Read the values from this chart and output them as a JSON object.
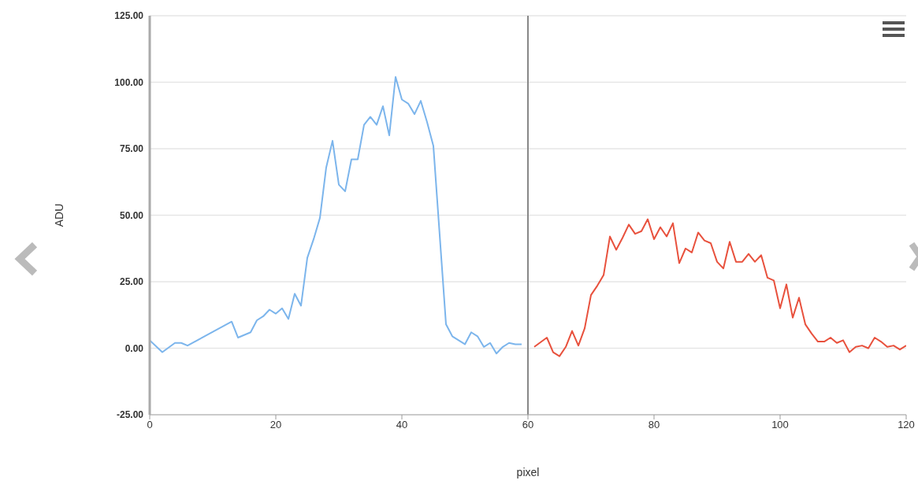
{
  "chart_data": {
    "type": "line",
    "xlabel": "pixel",
    "ylabel": "ADU",
    "xlim": [
      0,
      120
    ],
    "xticks": [
      0,
      20,
      40,
      60,
      80,
      100,
      120
    ],
    "ylim": [
      -25,
      125
    ],
    "yticks": [
      {
        "value": -25,
        "label": "-25.00"
      },
      {
        "value": 0,
        "label": "0.00"
      },
      {
        "value": 25,
        "label": "25.00"
      },
      {
        "value": 50,
        "label": "50.00"
      },
      {
        "value": 75,
        "label": "75.00"
      },
      {
        "value": 100,
        "label": "100.00"
      },
      {
        "value": 125,
        "label": "125.00"
      }
    ],
    "grid": "y",
    "marker": "none",
    "ref_lines": [
      {
        "axis": "x",
        "value": 60,
        "color": "#888888"
      }
    ],
    "series": [
      {
        "color": "#7cb5ec",
        "x": [
          0,
          2,
          4,
          5,
          6,
          13,
          14,
          16,
          17,
          18,
          19,
          20,
          21,
          22,
          23,
          24,
          25,
          26,
          27,
          28,
          29,
          30,
          31,
          32,
          33,
          34,
          35,
          36,
          37,
          38,
          39,
          40,
          41,
          42,
          43,
          44,
          45,
          47,
          48,
          49,
          50,
          51,
          52,
          53,
          54,
          55,
          56,
          57,
          58,
          59
        ],
        "values": [
          3,
          -1.5,
          2,
          2,
          1,
          10,
          4,
          6,
          10.5,
          12,
          14.5,
          13,
          15,
          11,
          20.5,
          16,
          34,
          41,
          49,
          68,
          78,
          61.5,
          59,
          71,
          71,
          84,
          87,
          84,
          91,
          80,
          102,
          93.5,
          92,
          88,
          93,
          85,
          76,
          9,
          4.5,
          3,
          1.5,
          6,
          4.5,
          0.5,
          2,
          -2,
          0.5,
          2,
          1.5,
          1.5
        ]
      },
      {
        "color": "#e8513d",
        "x": [
          61,
          63,
          64,
          65,
          66,
          67,
          68,
          69,
          70,
          71,
          72,
          73,
          74,
          75,
          76,
          77,
          78,
          79,
          80,
          81,
          82,
          83,
          84,
          85,
          86,
          87,
          88,
          89,
          90,
          91,
          92,
          93,
          94,
          95,
          96,
          97,
          98,
          99,
          100,
          101,
          102,
          103,
          104,
          105,
          106,
          107,
          108,
          109,
          110,
          111,
          112,
          113,
          114,
          115,
          116,
          117,
          118,
          119,
          120
        ],
        "values": [
          0.5,
          4,
          -1.5,
          -3,
          0.5,
          6.5,
          1,
          7.5,
          20,
          23.5,
          27.5,
          42,
          37,
          41.5,
          46.5,
          43,
          44,
          48.5,
          41,
          45.5,
          42,
          47,
          32,
          37.5,
          36,
          43.5,
          40.5,
          39.5,
          32.5,
          30,
          40,
          32.5,
          32.5,
          35.5,
          32.5,
          35,
          26.5,
          25.5,
          15,
          24,
          11.5,
          19,
          9,
          5.5,
          2.5,
          2.5,
          4,
          2,
          3,
          -1.5,
          0.5,
          1,
          0,
          4,
          2.5,
          0.5,
          1,
          -0.5,
          1
        ]
      }
    ]
  }
}
